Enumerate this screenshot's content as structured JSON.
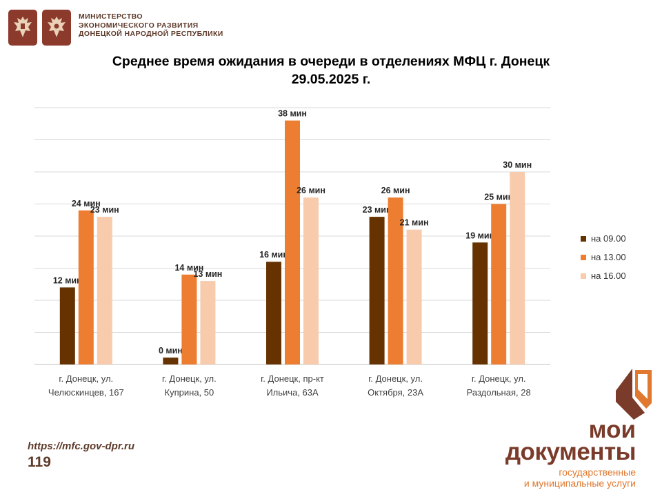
{
  "header": {
    "ministry_lines": [
      "МИНИСТЕРСТВО",
      "ЭКОНОМИЧЕСКОГО РАЗВИТИЯ",
      "ДОНЕЦКОЙ НАРОДНОЙ РЕСПУБЛИКИ"
    ]
  },
  "colors": {
    "brand_brown": "#7a3b2a",
    "brand_orange": "#e0782f",
    "series_0900": "#663300",
    "series_1300": "#ed7d31",
    "series_1600": "#f8cbad",
    "grid": "#d9d9d9"
  },
  "chart_data": {
    "type": "bar",
    "title_lines": [
      "Среднее время ожидания в очереди в отделениях МФЦ г. Донецк",
      "29.05.2025 г."
    ],
    "categories": [
      [
        "г. Донецк, ул.",
        "Челюскинцев, 167"
      ],
      [
        "г. Донецк, ул.",
        "Куприна, 50"
      ],
      [
        "г. Донецк, пр-кт",
        "Ильича, 63А"
      ],
      [
        "г. Донецк, ул.",
        "Октября, 23А"
      ],
      [
        "г. Донецк, ул.",
        "Раздольная, 28"
      ]
    ],
    "series": [
      {
        "name": "на 09.00",
        "color": "#663300",
        "values": [
          12,
          0,
          16,
          23,
          19
        ]
      },
      {
        "name": "на 13.00",
        "color": "#ed7d31",
        "values": [
          24,
          14,
          38,
          26,
          25
        ]
      },
      {
        "name": "на 16.00",
        "color": "#f8cbad",
        "values": [
          23,
          13,
          26,
          21,
          30
        ]
      }
    ],
    "value_suffix": " мин",
    "ylim": [
      0,
      40
    ],
    "grid": true,
    "legend_position": "right"
  },
  "footer": {
    "url": "https://mfc.gov-dpr.ru",
    "page_number": "119"
  },
  "brand": {
    "line1": "мои",
    "line2": "документы",
    "sub1": "государственные",
    "sub2": "и муниципальные услуги"
  }
}
